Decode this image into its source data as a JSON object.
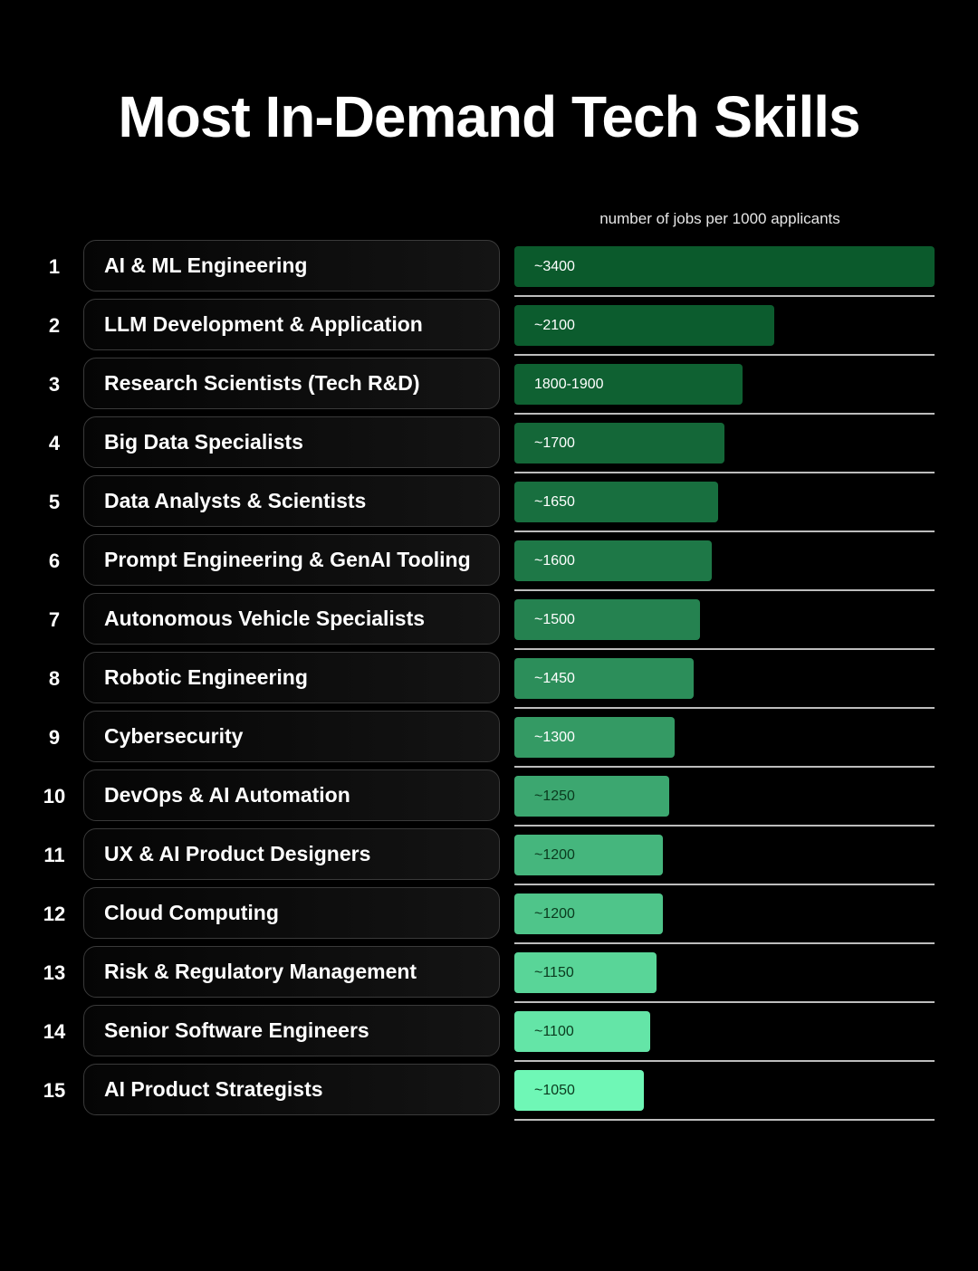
{
  "header": {
    "title": "Most In-Demand Tech Skills",
    "units_note": "number of jobs per 1000 applicants"
  },
  "colors": {
    "background": "#000000",
    "bar_dark": "#0b5a2c",
    "bar_light": "#6ff7b6"
  },
  "chart_data": {
    "type": "bar",
    "orientation": "horizontal",
    "title": "Most In-Demand Tech Skills",
    "xlabel": "number of jobs per 1000 applicants",
    "xlim": [
      0,
      3400
    ],
    "categories": [
      "AI & ML Engineering",
      "LLM Development & Application",
      "Research Scientists (Tech R&D)",
      "Big Data Specialists",
      "Data Analysts & Scientists",
      "Prompt Engineering & GenAI Tooling",
      "Autonomous Vehicle Specialists",
      "Robotic Engineering",
      "Cybersecurity",
      "DevOps & AI Automation",
      "UX & AI Product Designers",
      "Cloud Computing",
      "Risk & Regulatory Management",
      "Senior Software Engineers",
      "AI Product Strategists"
    ],
    "ranks": [
      "1",
      "2",
      "3",
      "4",
      "5",
      "6",
      "7",
      "8",
      "9",
      "10",
      "11",
      "12",
      "13",
      "14",
      "15"
    ],
    "values": [
      3400,
      2100,
      1850,
      1700,
      1650,
      1600,
      1500,
      1450,
      1300,
      1250,
      1200,
      1200,
      1150,
      1100,
      1050
    ],
    "value_labels": [
      "~3400",
      "~2100",
      "1800-1900",
      "~1700",
      "~1650",
      "~1600",
      "~1500",
      "~1450",
      "~1300",
      "~1250",
      "~1200",
      "~1200",
      "~1150",
      "~1100",
      "~1050"
    ]
  }
}
